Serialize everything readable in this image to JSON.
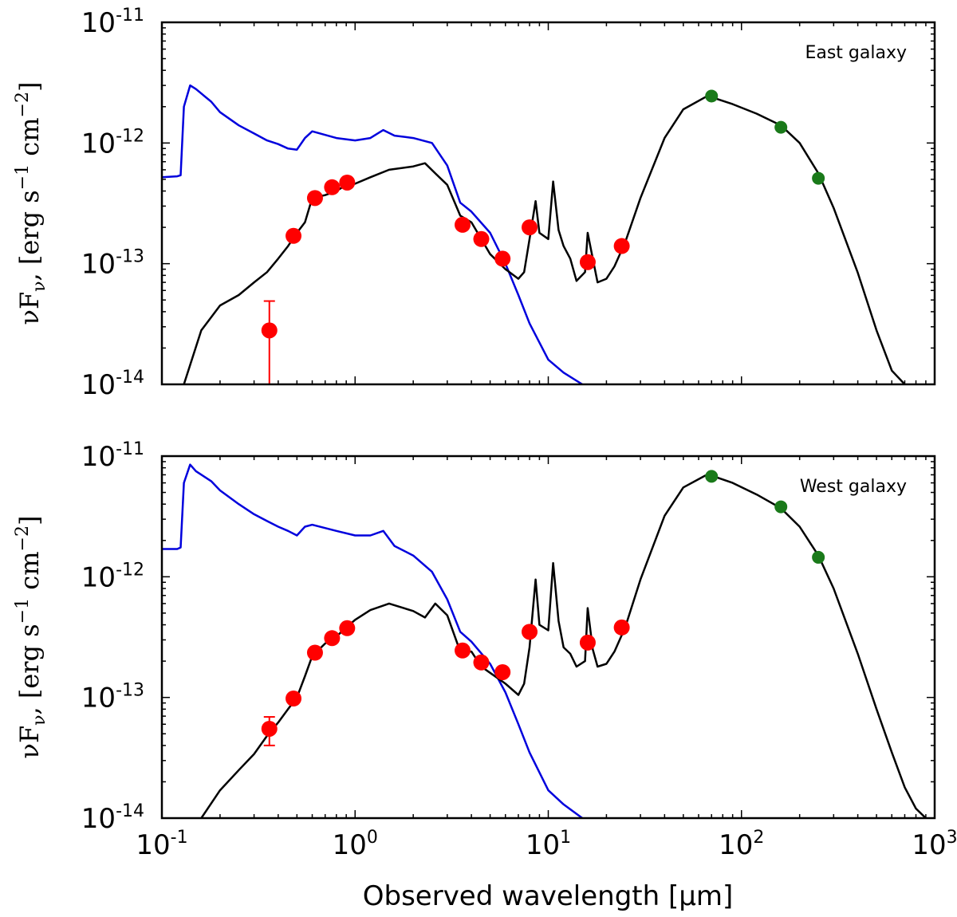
{
  "chart_data": [
    {
      "type": "line",
      "panel": "top",
      "title": "",
      "annotation": "East galaxy",
      "xlabel": "Observed wavelength [μm]",
      "ylabel": "νF_ν [erg s^-1 cm^-2]",
      "xscale": "log",
      "yscale": "log",
      "xlim": [
        0.1,
        1000
      ],
      "ylim": [
        1e-14,
        1e-11
      ],
      "x_tick_labels": [
        "10^-1",
        "10^0",
        "10^1",
        "10^2",
        "10^3"
      ],
      "y_tick_labels": [
        "10^-14",
        "10^-13",
        "10^-12",
        "10^-11"
      ],
      "colors": {
        "model_total": "#000000",
        "model_unattenuated": "#0000dd",
        "optical_ir_points": "#ff0000",
        "far_ir_points": "#1a7a1a"
      },
      "series": [
        {
          "name": "unattenuated stellar model",
          "color": "#0000dd",
          "x": [
            0.1,
            0.12,
            0.125,
            0.13,
            0.14,
            0.15,
            0.18,
            0.2,
            0.25,
            0.3,
            0.35,
            0.4,
            0.45,
            0.5,
            0.55,
            0.6,
            0.8,
            1.0,
            1.2,
            1.4,
            1.6,
            2.0,
            2.5,
            3.0,
            3.5,
            4.0,
            5.0,
            6.0,
            7.0,
            8.0,
            10,
            12,
            15
          ],
          "y": [
            5.2e-13,
            5.3e-13,
            5.4e-13,
            2e-12,
            3e-12,
            2.8e-12,
            2.2e-12,
            1.8e-12,
            1.4e-12,
            1.2e-12,
            1.05e-12,
            9.8e-13,
            9e-13,
            8.8e-13,
            1.1e-12,
            1.25e-12,
            1.1e-12,
            1.05e-12,
            1.1e-12,
            1.28e-12,
            1.15e-12,
            1.1e-12,
            1e-12,
            6.5e-13,
            3.2e-13,
            2.7e-13,
            1.8e-13,
            1e-13,
            5.5e-14,
            3.2e-14,
            1.6e-14,
            1.25e-14,
            1e-14
          ]
        },
        {
          "name": "best-fit total model",
          "color": "#000000",
          "x": [
            0.13,
            0.16,
            0.2,
            0.25,
            0.3,
            0.35,
            0.4,
            0.45,
            0.5,
            0.55,
            0.6,
            0.7,
            0.8,
            0.9,
            1.0,
            1.2,
            1.5,
            2.0,
            2.3,
            2.6,
            3.0,
            3.5,
            4.0,
            4.5,
            5.0,
            6.0,
            7.0,
            7.5,
            8.0,
            8.6,
            9.0,
            10.0,
            10.6,
            11.3,
            12.0,
            13.0,
            14.0,
            15.5,
            16.0,
            17.0,
            18.0,
            20.0,
            22.0,
            25.0,
            30.0,
            40.0,
            50.0,
            65.0,
            70.0,
            90.0,
            120.0,
            160.0,
            200.0,
            250.0,
            300.0,
            400.0,
            500.0,
            600.0,
            700.0
          ],
          "y": [
            1e-14,
            2.8e-14,
            4.5e-14,
            5.5e-14,
            7e-14,
            8.5e-14,
            1.1e-13,
            1.4e-13,
            1.8e-13,
            2.2e-13,
            3.5e-13,
            3.7e-13,
            4e-13,
            4.5e-13,
            4.6e-13,
            5.2e-13,
            6e-13,
            6.4e-13,
            6.8e-13,
            5.6e-13,
            4.5e-13,
            2.5e-13,
            2.2e-13,
            1.6e-13,
            1.2e-13,
            9e-14,
            7.5e-14,
            8.5e-14,
            1.6e-13,
            3.3e-13,
            1.8e-13,
            1.6e-13,
            4.8e-13,
            1.9e-13,
            1.4e-13,
            1.1e-13,
            7.2e-14,
            8.5e-14,
            1.8e-13,
            1.1e-13,
            7e-14,
            7.5e-14,
            9.5e-14,
            1.5e-13,
            3.5e-13,
            1.1e-12,
            1.9e-12,
            2.4e-12,
            2.4e-12,
            2.1e-12,
            1.75e-12,
            1.4e-12,
            1e-12,
            5.6e-13,
            2.9e-13,
            8.4e-14,
            2.8e-14,
            1.3e-14,
            1e-14
          ]
        },
        {
          "name": "optical-to-mid-IR photometry",
          "color": "#ff0000",
          "marker": "circle",
          "x": [
            0.36,
            0.48,
            0.62,
            0.76,
            0.91,
            3.6,
            4.5,
            5.8,
            8.0,
            16.0,
            24.0
          ],
          "y": [
            2.8e-14,
            1.7e-13,
            3.5e-13,
            4.3e-13,
            4.7e-13,
            2.1e-13,
            1.6e-13,
            1.1e-13,
            2e-13,
            1.03e-13,
            1.4e-13
          ],
          "yerr_upper": [
            2.1e-14,
            0,
            0,
            0,
            0,
            0,
            0,
            0,
            0,
            0,
            0
          ],
          "yerr_lower": [
            1.8e-14,
            0,
            0,
            0,
            0,
            0,
            0,
            0,
            0,
            0,
            0
          ]
        },
        {
          "name": "far-IR photometry",
          "color": "#1a7a1a",
          "marker": "circle",
          "x": [
            70,
            160,
            250
          ],
          "y": [
            2.45e-12,
            1.35e-12,
            5.1e-13
          ]
        }
      ]
    },
    {
      "type": "line",
      "panel": "bottom",
      "title": "",
      "annotation": "West galaxy",
      "xlabel": "Observed wavelength [μm]",
      "ylabel": "νF_ν [erg s^-1 cm^-2]",
      "xscale": "log",
      "yscale": "log",
      "xlim": [
        0.1,
        1000
      ],
      "ylim": [
        1e-14,
        1e-11
      ],
      "x_tick_labels": [
        "10^-1",
        "10^0",
        "10^1",
        "10^2",
        "10^3"
      ],
      "y_tick_labels": [
        "10^-14",
        "10^-13",
        "10^-12",
        "10^-11"
      ],
      "colors": {
        "model_total": "#000000",
        "model_unattenuated": "#0000dd",
        "optical_ir_points": "#ff0000",
        "far_ir_points": "#1a7a1a"
      },
      "series": [
        {
          "name": "unattenuated stellar model",
          "color": "#0000dd",
          "x": [
            0.1,
            0.12,
            0.125,
            0.13,
            0.14,
            0.15,
            0.18,
            0.2,
            0.25,
            0.3,
            0.35,
            0.4,
            0.45,
            0.5,
            0.55,
            0.6,
            0.8,
            1.0,
            1.2,
            1.4,
            1.6,
            2.0,
            2.5,
            3.0,
            3.5,
            4.0,
            5.0,
            6.0,
            7.0,
            8.0,
            10,
            12,
            15
          ],
          "y": [
            1.7e-12,
            1.7e-12,
            1.75e-12,
            6e-12,
            8.5e-12,
            7.5e-12,
            6.2e-12,
            5.2e-12,
            4e-12,
            3.3e-12,
            2.9e-12,
            2.6e-12,
            2.4e-12,
            2.2e-12,
            2.6e-12,
            2.7e-12,
            2.4e-12,
            2.2e-12,
            2.2e-12,
            2.4e-12,
            1.8e-12,
            1.5e-12,
            1.1e-12,
            6.5e-13,
            3.5e-13,
            2.9e-13,
            1.9e-13,
            1.1e-13,
            6e-14,
            3.5e-14,
            1.7e-14,
            1.3e-14,
            1e-14
          ]
        },
        {
          "name": "best-fit total model",
          "color": "#000000",
          "x": [
            0.16,
            0.2,
            0.25,
            0.3,
            0.35,
            0.4,
            0.45,
            0.5,
            0.55,
            0.6,
            0.7,
            0.8,
            0.9,
            1.0,
            1.2,
            1.5,
            2.0,
            2.3,
            2.6,
            3.0,
            3.5,
            4.0,
            4.5,
            5.0,
            6.0,
            7.0,
            7.5,
            8.0,
            8.6,
            9.0,
            10.0,
            10.6,
            11.3,
            12.0,
            13.0,
            14.0,
            15.5,
            16.0,
            17.0,
            18.0,
            20.0,
            22.0,
            25.0,
            30.0,
            40.0,
            50.0,
            65.0,
            70.0,
            90.0,
            120.0,
            160.0,
            200.0,
            250.0,
            300.0,
            400.0,
            500.0,
            600.0,
            700.0,
            800.0,
            900.0
          ],
          "y": [
            1e-14,
            1.7e-14,
            2.5e-14,
            3.4e-14,
            4.8e-14,
            6.2e-14,
            8e-14,
            1e-13,
            1.5e-13,
            2.2e-13,
            2.8e-13,
            3.2e-13,
            3.8e-13,
            4.4e-13,
            5.3e-13,
            6e-13,
            5.2e-13,
            4.6e-13,
            6e-13,
            4.8e-13,
            2.4e-13,
            2.4e-13,
            1.8e-13,
            1.6e-13,
            1.3e-13,
            1.05e-13,
            1.3e-13,
            2.6e-13,
            9.5e-13,
            4e-13,
            3.6e-13,
            1.3e-12,
            4.3e-13,
            2.6e-13,
            2.3e-13,
            1.8e-13,
            2e-13,
            5.5e-13,
            2.5e-13,
            1.8e-13,
            1.9e-13,
            2.4e-13,
            3.8e-13,
            9.5e-13,
            3.2e-12,
            5.5e-12,
            6.9e-12,
            6.9e-12,
            6e-12,
            4.8e-12,
            3.7e-12,
            2.6e-12,
            1.5e-12,
            8e-13,
            2.3e-13,
            8e-14,
            3.5e-14,
            1.8e-14,
            1.2e-14,
            1e-14
          ]
        },
        {
          "name": "optical-to-mid-IR photometry",
          "color": "#ff0000",
          "marker": "circle",
          "x": [
            0.36,
            0.48,
            0.62,
            0.76,
            0.91,
            3.6,
            4.5,
            5.8,
            8.0,
            16.0,
            24.0
          ],
          "y": [
            5.5e-14,
            9.8e-14,
            2.35e-13,
            3.1e-13,
            3.75e-13,
            2.45e-13,
            1.95e-13,
            1.62e-13,
            3.5e-13,
            2.85e-13,
            3.8e-13
          ],
          "yerr_upper": [
            1.4e-14,
            0,
            0,
            0,
            0,
            0,
            0,
            0,
            0,
            0,
            0
          ],
          "yerr_lower": [
            1.5e-14,
            0,
            0,
            0,
            0,
            0,
            0,
            0,
            0,
            0,
            0
          ]
        },
        {
          "name": "far-IR photometry",
          "color": "#1a7a1a",
          "marker": "circle",
          "x": [
            70,
            160,
            250
          ],
          "y": [
            6.8e-12,
            3.8e-12,
            1.45e-12
          ]
        }
      ]
    }
  ]
}
